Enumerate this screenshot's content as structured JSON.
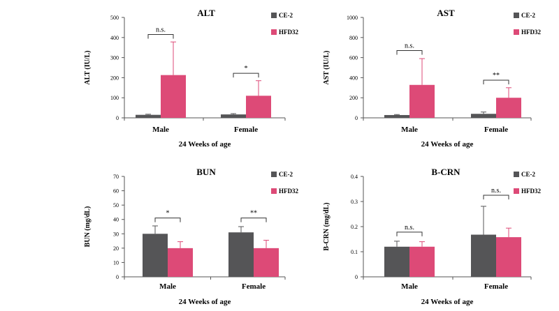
{
  "figure": {
    "colors": {
      "ce2": "#555557",
      "hfd32": "#dd4a77",
      "axis": "#555555"
    }
  },
  "chart_data": [
    {
      "type": "bar",
      "title": "ALT",
      "ylabel": "ALT (IU/L)",
      "xlabel": "24 Weeks of age",
      "categories": [
        "Male",
        "Female"
      ],
      "ylim": [
        0,
        500
      ],
      "yticks": [
        0,
        100,
        200,
        300,
        400,
        500
      ],
      "legend_position": "top-right",
      "series": [
        {
          "name": "CE-2",
          "values": [
            15,
            17
          ],
          "errors": [
            3,
            4
          ]
        },
        {
          "name": "HFD32",
          "values": [
            213,
            110
          ],
          "errors": [
            165,
            75
          ]
        }
      ],
      "significance": [
        {
          "category": "Male",
          "label": "n.s.",
          "bracket_y": 415
        },
        {
          "category": "Female",
          "label": "*",
          "bracket_y": 222
        }
      ]
    },
    {
      "type": "bar",
      "title": "AST",
      "ylabel": "AST (IU/L)",
      "xlabel": "24 Weeks of age",
      "categories": [
        "Male",
        "Female"
      ],
      "ylim": [
        0,
        1000
      ],
      "yticks": [
        0,
        200,
        400,
        600,
        800,
        1000
      ],
      "legend_position": "top-right",
      "series": [
        {
          "name": "CE-2",
          "values": [
            28,
            40
          ],
          "errors": [
            5,
            18
          ]
        },
        {
          "name": "HFD32",
          "values": [
            328,
            200
          ],
          "errors": [
            262,
            100
          ]
        }
      ],
      "significance": [
        {
          "category": "Male",
          "label": "n.s.",
          "bracket_y": 670
        },
        {
          "category": "Female",
          "label": "**",
          "bracket_y": 375
        }
      ]
    },
    {
      "type": "bar",
      "title": "BUN",
      "ylabel": "BUN (mg/dL)",
      "xlabel": "24 Weeks of age",
      "categories": [
        "Male",
        "Female"
      ],
      "ylim": [
        0,
        70
      ],
      "yticks": [
        0,
        10,
        20,
        30,
        40,
        50,
        60,
        70
      ],
      "legend_position": "top-right",
      "series": [
        {
          "name": "CE-2",
          "values": [
            30,
            31
          ],
          "errors": [
            5.5,
            4
          ]
        },
        {
          "name": "HFD32",
          "values": [
            20,
            20
          ],
          "errors": [
            4.5,
            5.5
          ]
        }
      ],
      "significance": [
        {
          "category": "Male",
          "label": "*",
          "bracket_y": 41
        },
        {
          "category": "Female",
          "label": "**",
          "bracket_y": 41
        }
      ]
    },
    {
      "type": "bar",
      "title": "B-CRN",
      "ylabel": "B-CRN (mg/dL)",
      "xlabel": "24 Weeks of age",
      "categories": [
        "Male",
        "Female"
      ],
      "ylim": [
        0,
        0.4
      ],
      "yticks": [
        0,
        0.1,
        0.2,
        0.3,
        0.4
      ],
      "legend_position": "top-right",
      "series": [
        {
          "name": "CE-2",
          "values": [
            0.12,
            0.168
          ],
          "errors": [
            0.022,
            0.113
          ]
        },
        {
          "name": "HFD32",
          "values": [
            0.12,
            0.158
          ],
          "errors": [
            0.02,
            0.036
          ]
        }
      ],
      "significance": [
        {
          "category": "Male",
          "label": "n.s.",
          "bracket_y": 0.178
        },
        {
          "category": "Female",
          "label": "n.s.",
          "bracket_y": 0.325
        }
      ]
    }
  ]
}
